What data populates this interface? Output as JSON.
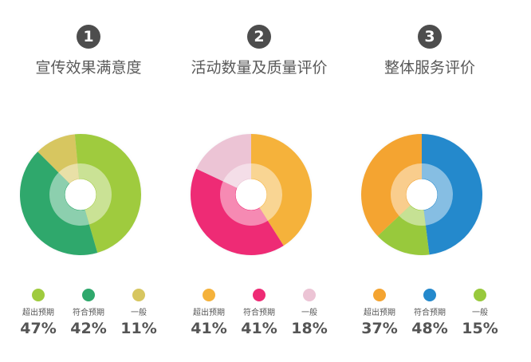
{
  "chart_data": [
    {
      "type": "pie",
      "badge": "1",
      "title": "宣传效果满意度",
      "start_angle_deg": -45,
      "categories": [
        "超出预期",
        "符合预期",
        "一般"
      ],
      "values": [
        47,
        42,
        11
      ],
      "labels": [
        "47%",
        "42%",
        "11%"
      ],
      "colors": [
        "#9fcb3e",
        "#2fa86c",
        "#d7c660"
      ],
      "start_order": [
        2,
        0,
        1
      ]
    },
    {
      "type": "pie",
      "badge": "2",
      "title": "活动数量及质量评价",
      "start_angle_deg": 0,
      "categories": [
        "超出预期",
        "符合预期",
        "一般"
      ],
      "values": [
        41,
        41,
        18
      ],
      "labels": [
        "41%",
        "41%",
        "18%"
      ],
      "colors": [
        "#f5b23b",
        "#ee2b75",
        "#ecc4d5"
      ],
      "start_order": [
        0,
        1,
        2
      ]
    },
    {
      "type": "pie",
      "badge": "3",
      "title": "整体服务评价",
      "start_angle_deg": 0,
      "categories": [
        "超出预期",
        "符合预期",
        "一般"
      ],
      "values": [
        37,
        48,
        15
      ],
      "labels": [
        "37%",
        "48%",
        "15%"
      ],
      "colors": [
        "#f4a431",
        "#2489cc",
        "#98c93c"
      ],
      "start_order": [
        1,
        2,
        0
      ]
    }
  ]
}
